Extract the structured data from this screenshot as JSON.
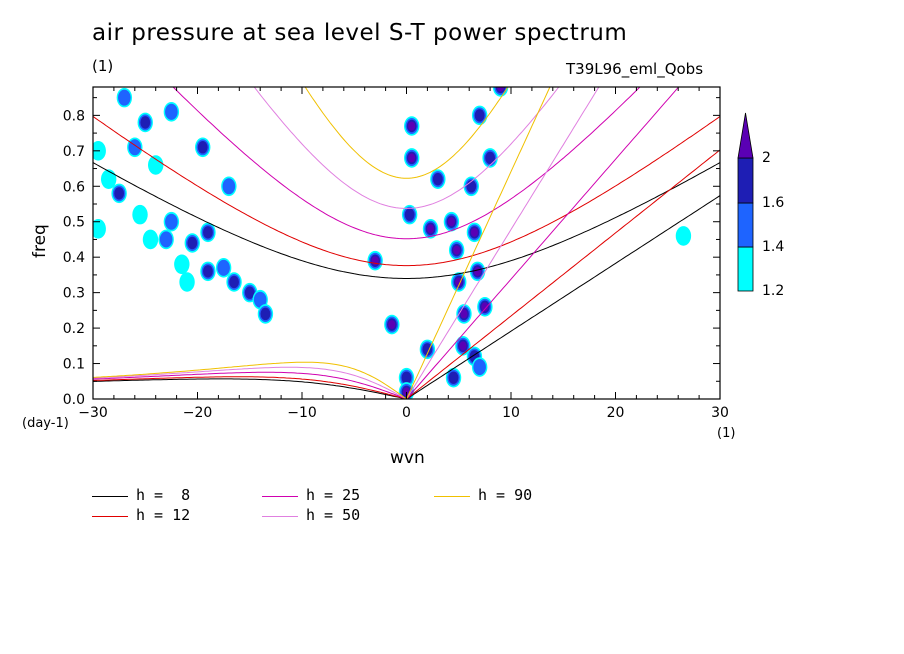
{
  "header": {
    "title": "air pressure at sea level S-T power spectrum",
    "subtitle": "(1)",
    "experiment": "T39L96_eml_Qobs"
  },
  "axes": {
    "ylabel": "freq",
    "yunit": "(day-1)",
    "xlabel": "wvn",
    "xunit": "(1)"
  },
  "legend": [
    {
      "label": "h =  8",
      "color": "#000000"
    },
    {
      "label": "h = 12",
      "color": "#e00000"
    },
    {
      "label": "h = 25",
      "color": "#d000b0"
    },
    {
      "label": "h = 50",
      "color": "#e080e0"
    },
    {
      "label": "h = 90",
      "color": "#f0c000"
    }
  ],
  "colorbar": {
    "levels": [
      "1.2",
      "1.4",
      "1.6",
      "2"
    ],
    "colors": [
      "#00ffff",
      "#1e64ff",
      "#1e1eb4",
      "#5a00b4"
    ]
  },
  "chart_data": {
    "type": "heatmap",
    "title": "air pressure at sea level S-T power spectrum",
    "xlabel": "wvn",
    "ylabel": "freq",
    "xlim": [
      -30,
      30
    ],
    "ylim": [
      0,
      0.88
    ],
    "xticks": [
      -30,
      -20,
      -10,
      0,
      10,
      20,
      30
    ],
    "yticks": [
      0,
      0.1,
      0.2,
      0.3,
      0.4,
      0.5,
      0.6,
      0.7,
      0.8
    ],
    "contour_levels": [
      1.2,
      1.4,
      1.6,
      2
    ],
    "contour_colors": [
      "#00ffff",
      "#1e64ff",
      "#1e1eb4",
      "#5a00b4"
    ],
    "dispersion_curves": [
      {
        "name": "h =  8",
        "color": "#000000"
      },
      {
        "name": "h = 12",
        "color": "#e00000"
      },
      {
        "name": "h = 25",
        "color": "#d000b0"
      },
      {
        "name": "h = 50",
        "color": "#e080e0"
      },
      {
        "name": "h = 90",
        "color": "#f0c000"
      }
    ],
    "blobs": [
      {
        "x": 0.5,
        "y": 0.77,
        "level": 3
      },
      {
        "x": 0.5,
        "y": 0.68,
        "level": 3
      },
      {
        "x": 0.3,
        "y": 0.52,
        "level": 2
      },
      {
        "x": 2.3,
        "y": 0.48,
        "level": 3
      },
      {
        "x": 3.0,
        "y": 0.62,
        "level": 2
      },
      {
        "x": 4.3,
        "y": 0.5,
        "level": 3
      },
      {
        "x": 4.8,
        "y": 0.42,
        "level": 3
      },
      {
        "x": 5.0,
        "y": 0.33,
        "level": 3
      },
      {
        "x": 5.5,
        "y": 0.24,
        "level": 3
      },
      {
        "x": 6.5,
        "y": 0.47,
        "level": 3
      },
      {
        "x": 6.8,
        "y": 0.36,
        "level": 3
      },
      {
        "x": 7.5,
        "y": 0.26,
        "level": 3
      },
      {
        "x": 7.0,
        "y": 0.8,
        "level": 2
      },
      {
        "x": 8.0,
        "y": 0.68,
        "level": 2
      },
      {
        "x": 6.2,
        "y": 0.6,
        "level": 2
      },
      {
        "x": 5.4,
        "y": 0.15,
        "level": 3
      },
      {
        "x": 2.0,
        "y": 0.14,
        "level": 2
      },
      {
        "x": 0.0,
        "y": 0.06,
        "level": 2
      },
      {
        "x": 0.0,
        "y": 0.02,
        "level": 3
      },
      {
        "x": -1.4,
        "y": 0.21,
        "level": 3
      },
      {
        "x": -3.0,
        "y": 0.39,
        "level": 3
      },
      {
        "x": 4.5,
        "y": 0.06,
        "level": 2
      },
      {
        "x": 6.5,
        "y": 0.12,
        "level": 2
      },
      {
        "x": 9.0,
        "y": 0.88,
        "level": 3
      },
      {
        "x": 7.0,
        "y": 0.09,
        "level": 1
      },
      {
        "x": -28.5,
        "y": 0.62,
        "level": 0
      },
      {
        "x": -27.5,
        "y": 0.58,
        "level": 2
      },
      {
        "x": -25.5,
        "y": 0.52,
        "level": 0
      },
      {
        "x": -22.5,
        "y": 0.5,
        "level": 1
      },
      {
        "x": -20.5,
        "y": 0.44,
        "level": 2
      },
      {
        "x": -19.0,
        "y": 0.47,
        "level": 2
      },
      {
        "x": -21.5,
        "y": 0.38,
        "level": 0
      },
      {
        "x": -19.0,
        "y": 0.36,
        "level": 2
      },
      {
        "x": -17.5,
        "y": 0.37,
        "level": 1
      },
      {
        "x": -16.5,
        "y": 0.33,
        "level": 2
      },
      {
        "x": -15.0,
        "y": 0.3,
        "level": 2
      },
      {
        "x": -14.0,
        "y": 0.28,
        "level": 1
      },
      {
        "x": -13.5,
        "y": 0.24,
        "level": 2
      },
      {
        "x": -23.0,
        "y": 0.45,
        "level": 1
      },
      {
        "x": -24.5,
        "y": 0.45,
        "level": 0
      },
      {
        "x": -21.0,
        "y": 0.33,
        "level": 0
      },
      {
        "x": -27.0,
        "y": 0.85,
        "level": 1
      },
      {
        "x": -25.0,
        "y": 0.78,
        "level": 2
      },
      {
        "x": -22.5,
        "y": 0.81,
        "level": 1
      },
      {
        "x": -19.5,
        "y": 0.71,
        "level": 2
      },
      {
        "x": -17.0,
        "y": 0.6,
        "level": 1
      },
      {
        "x": -24.0,
        "y": 0.66,
        "level": 0
      },
      {
        "x": -29.5,
        "y": 0.7,
        "level": 0
      },
      {
        "x": -26.0,
        "y": 0.71,
        "level": 1
      },
      {
        "x": -29.5,
        "y": 0.48,
        "level": 0
      },
      {
        "x": 26.5,
        "y": 0.46,
        "level": 0
      }
    ]
  }
}
